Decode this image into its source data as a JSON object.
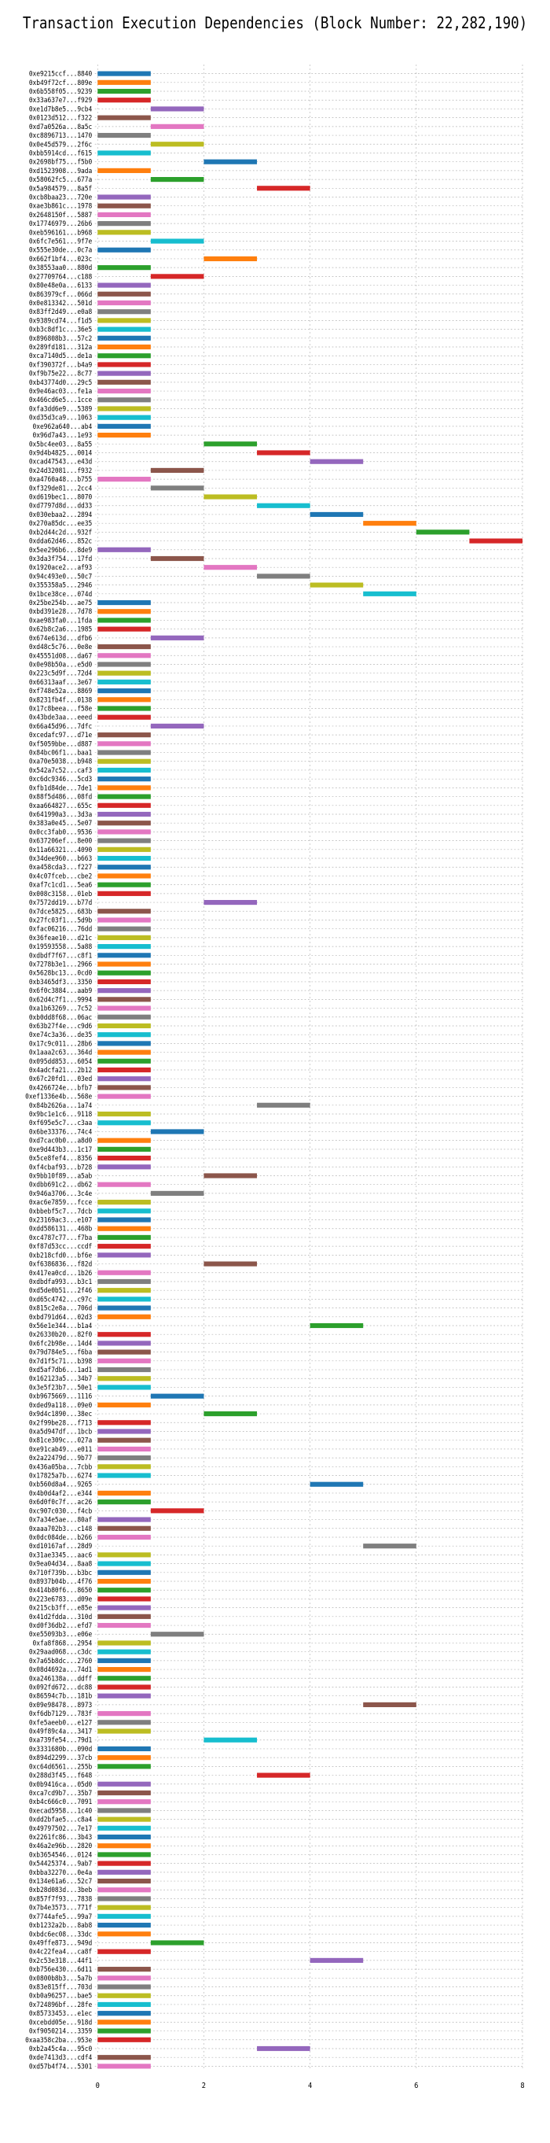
{
  "chart_data": {
    "type": "bar",
    "orientation": "horizontal",
    "title": "Transaction Execution Dependencies (Block Number: 22,282,190)",
    "xlabel": "",
    "ylabel": "",
    "xlim": [
      0,
      8
    ],
    "xticks": [
      0,
      2,
      4,
      6,
      8
    ],
    "grid": true,
    "palette": [
      "#1f77b4",
      "#ff7f0e",
      "#2ca02c",
      "#d62728",
      "#9467bd",
      "#8c564b",
      "#e377c2",
      "#7f7f7f",
      "#bcbd22",
      "#17becf"
    ],
    "transactions": [
      {
        "label": "0xe9215ccf...8840",
        "start": 0
      },
      {
        "label": "0xb49f72cf...809e",
        "start": 0
      },
      {
        "label": "0x6b558f05...9239",
        "start": 0
      },
      {
        "label": "0x33a637e7...f929",
        "start": 0
      },
      {
        "label": "0xe1d7b8e5...9cb4",
        "start": 1
      },
      {
        "label": "0x0123d512...f322",
        "start": 0
      },
      {
        "label": "0xd7a0526a...8a5c",
        "start": 1
      },
      {
        "label": "0xc8896713...1470",
        "start": 0
      },
      {
        "label": "0x0e45d579...2f6c",
        "start": 1
      },
      {
        "label": "0xbb5914cd...f615",
        "start": 0
      },
      {
        "label": "0x2698bf75...f5b0",
        "start": 2
      },
      {
        "label": "0xd1523908...9ada",
        "start": 0
      },
      {
        "label": "0x58062fc5...677a",
        "start": 1
      },
      {
        "label": "0x5a984579...8a5f",
        "start": 3
      },
      {
        "label": "0xcb8baa23...720e",
        "start": 0
      },
      {
        "label": "0xae3b861c...1978",
        "start": 0
      },
      {
        "label": "0x2648150f...5887",
        "start": 0
      },
      {
        "label": "0x17746979...26b6",
        "start": 0
      },
      {
        "label": "0xeb596161...b968",
        "start": 0
      },
      {
        "label": "0x6fc7e561...9f7e",
        "start": 1
      },
      {
        "label": "0x555e30de...0c7a",
        "start": 0
      },
      {
        "label": "0x662f1bf4...023c",
        "start": 2
      },
      {
        "label": "0x38553aa0...880d",
        "start": 0
      },
      {
        "label": "0x27709764...c188",
        "start": 1
      },
      {
        "label": "0x80e48e0a...6133",
        "start": 0
      },
      {
        "label": "0x863979cf...066d",
        "start": 0
      },
      {
        "label": "0x0e813342...501d",
        "start": 0
      },
      {
        "label": "0x83ff2d49...e0a8",
        "start": 0
      },
      {
        "label": "0x9389cd74...f1d5",
        "start": 0
      },
      {
        "label": "0xb3c8df1c...36e5",
        "start": 0
      },
      {
        "label": "0x896808b3...57c2",
        "start": 0
      },
      {
        "label": "0x289fd181...312a",
        "start": 0
      },
      {
        "label": "0xca7140d5...de1a",
        "start": 0
      },
      {
        "label": "0xf390372f...b4a9",
        "start": 0
      },
      {
        "label": "0xf9b75e22...8c77",
        "start": 0
      },
      {
        "label": "0xb43774d0...29c5",
        "start": 0
      },
      {
        "label": "0x9e46ac03...fe1a",
        "start": 0
      },
      {
        "label": "0x466cd6e5...1cce",
        "start": 0
      },
      {
        "label": "0xfa3dd6e9...5389",
        "start": 0
      },
      {
        "label": "0xd35d3ca9...1063",
        "start": 0
      },
      {
        "label": "0xe962a640...ab4",
        "start": 0
      },
      {
        "label": "0x96d7a43...1e93",
        "start": 0
      },
      {
        "label": "0x5bc4ee03...8a55",
        "start": 2
      },
      {
        "label": "0x9d4b4825...0014",
        "start": 3
      },
      {
        "label": "0xcad47543...e43d",
        "start": 4
      },
      {
        "label": "0x24d32081...f932",
        "start": 1
      },
      {
        "label": "0xa4760a48...b755",
        "start": 0
      },
      {
        "label": "0xf329de81...2cc4",
        "start": 1
      },
      {
        "label": "0xd619bec1...8070",
        "start": 2
      },
      {
        "label": "0xd7797d8d...dd33",
        "start": 3
      },
      {
        "label": "0x030ebaa2...2894",
        "start": 4
      },
      {
        "label": "0x270a85dc...ee35",
        "start": 5
      },
      {
        "label": "0xb2d44c2d...932f",
        "start": 6
      },
      {
        "label": "0xdda62d46...852c",
        "start": 7
      },
      {
        "label": "0x5ee296b6...8de9",
        "start": 0
      },
      {
        "label": "0x3da3f754...17fd",
        "start": 1
      },
      {
        "label": "0x1920ace2...af93",
        "start": 2
      },
      {
        "label": "0x94c493e0...50c7",
        "start": 3
      },
      {
        "label": "0x355358a5...2946",
        "start": 4
      },
      {
        "label": "0x1bce38ce...074d",
        "start": 5
      },
      {
        "label": "0x25be254b...ae75",
        "start": 0
      },
      {
        "label": "0xbd391e28...7d78",
        "start": 0
      },
      {
        "label": "0xae983fa0...1fda",
        "start": 0
      },
      {
        "label": "0x62b8c2a6...1985",
        "start": 0
      },
      {
        "label": "0x674e613d...dfb6",
        "start": 1
      },
      {
        "label": "0xd48c5c76...0e8e",
        "start": 0
      },
      {
        "label": "0x45551d08...da67",
        "start": 0
      },
      {
        "label": "0x0e98b50a...e5d0",
        "start": 0
      },
      {
        "label": "0x223c5d9f...72d4",
        "start": 0
      },
      {
        "label": "0x66313aaf...3e67",
        "start": 0
      },
      {
        "label": "0xf748e52a...8869",
        "start": 0
      },
      {
        "label": "0x8231fb4f...0138",
        "start": 0
      },
      {
        "label": "0x17c8beea...f58e",
        "start": 0
      },
      {
        "label": "0x43bde3aa...eeed",
        "start": 0
      },
      {
        "label": "0x66a45d96...7dfc",
        "start": 1
      },
      {
        "label": "0xcedafc97...d71e",
        "start": 0
      },
      {
        "label": "0xf5059bbe...d887",
        "start": 0
      },
      {
        "label": "0x84bc06f1...baa1",
        "start": 0
      },
      {
        "label": "0xa70e5038...b948",
        "start": 0
      },
      {
        "label": "0x542a7c52...caf3",
        "start": 0
      },
      {
        "label": "0xc6dc9346...5cd3",
        "start": 0
      },
      {
        "label": "0xfb1d84de...7de1",
        "start": 0
      },
      {
        "label": "0x88f5d486...08fd",
        "start": 0
      },
      {
        "label": "0xaa664827...655c",
        "start": 0
      },
      {
        "label": "0x641990a3...3d3a",
        "start": 0
      },
      {
        "label": "0x383a0e45...5e07",
        "start": 0
      },
      {
        "label": "0x0cc3fab0...9536",
        "start": 0
      },
      {
        "label": "0x637206ef...8e00",
        "start": 0
      },
      {
        "label": "0x11a66321...4090",
        "start": 0
      },
      {
        "label": "0x34dee960...b663",
        "start": 0
      },
      {
        "label": "0xa458cda3...f227",
        "start": 0
      },
      {
        "label": "0x4c07fceb...cbe2",
        "start": 0
      },
      {
        "label": "0xaf7c1cd1...5ea6",
        "start": 0
      },
      {
        "label": "0x008c3158...01eb",
        "start": 0
      },
      {
        "label": "0x7572dd19...b77d",
        "start": 2
      },
      {
        "label": "0x7dce5825...683b",
        "start": 0
      },
      {
        "label": "0x27fc03f1...5d9b",
        "start": 0
      },
      {
        "label": "0xfac06216...76dd",
        "start": 0
      },
      {
        "label": "0x36feae10...d21c",
        "start": 0
      },
      {
        "label": "0x19593558...5a88",
        "start": 0
      },
      {
        "label": "0xdbdf7f67...c8f1",
        "start": 0
      },
      {
        "label": "0x7278b3e1...2966",
        "start": 0
      },
      {
        "label": "0x5628bc13...0cd0",
        "start": 0
      },
      {
        "label": "0xb3465df3...3350",
        "start": 0
      },
      {
        "label": "0x6f0c3884...aab9",
        "start": 0
      },
      {
        "label": "0x62d4c7f1...9994",
        "start": 0
      },
      {
        "label": "0xa1b63269...7c52",
        "start": 0
      },
      {
        "label": "0xb0dd8f68...06ac",
        "start": 0
      },
      {
        "label": "0x63b27f4e...c9d6",
        "start": 0
      },
      {
        "label": "0xe74c3a36...de35",
        "start": 0
      },
      {
        "label": "0x17c9c011...28b6",
        "start": 0
      },
      {
        "label": "0x1aaa2c63...364d",
        "start": 0
      },
      {
        "label": "0x095dd853...6054",
        "start": 0
      },
      {
        "label": "0x4adcfa21...2b12",
        "start": 0
      },
      {
        "label": "0x67c20fd1...03ed",
        "start": 0
      },
      {
        "label": "0x4266724e...bfb7",
        "start": 0
      },
      {
        "label": "0xef1336e4b...568e",
        "start": 0
      },
      {
        "label": "0x84b2626a...1a74",
        "start": 3
      },
      {
        "label": "0x9bc1e1c6...9118",
        "start": 0
      },
      {
        "label": "0xf695e5c7...c3aa",
        "start": 0
      },
      {
        "label": "0x6be33376...74c4",
        "start": 1
      },
      {
        "label": "0xd7cac0b0...a8d0",
        "start": 0
      },
      {
        "label": "0xe9d443b3...1c17",
        "start": 0
      },
      {
        "label": "0x5ce8fef4...8356",
        "start": 0
      },
      {
        "label": "0xf4cbaf93...b728",
        "start": 0
      },
      {
        "label": "0x9bb10f89...a5ab",
        "start": 2
      },
      {
        "label": "0xdbb691c2...db62",
        "start": 0
      },
      {
        "label": "0x946a3706...3c4e",
        "start": 1
      },
      {
        "label": "0xac6e7859...fcce",
        "start": 0
      },
      {
        "label": "0xbbebf5c7...7dcb",
        "start": 0
      },
      {
        "label": "0x23169ac3...e107",
        "start": 0
      },
      {
        "label": "0xdd586131...468b",
        "start": 0
      },
      {
        "label": "0xc4787c77...f7ba",
        "start": 0
      },
      {
        "label": "0xf87d53cc...ccdf",
        "start": 0
      },
      {
        "label": "0xb218cfd0...bf6e",
        "start": 0
      },
      {
        "label": "0xf6386836...f82d",
        "start": 2
      },
      {
        "label": "0x417ea0cd...1b26",
        "start": 0
      },
      {
        "label": "0xdbdfa993...b3c1",
        "start": 0
      },
      {
        "label": "0xd5de0b51...2f46",
        "start": 0
      },
      {
        "label": "0xd65c4742...c97c",
        "start": 0
      },
      {
        "label": "0x815c2e8a...706d",
        "start": 0
      },
      {
        "label": "0xbd791d64...02d3",
        "start": 0
      },
      {
        "label": "0x56e1e344...b1a4",
        "start": 4
      },
      {
        "label": "0x26330b20...82f0",
        "start": 0
      },
      {
        "label": "0x6fc2b98e...14d4",
        "start": 0
      },
      {
        "label": "0x79d784e5...f6ba",
        "start": 0
      },
      {
        "label": "0x7d1f5c71...b398",
        "start": 0
      },
      {
        "label": "0xd5af7db6...1ad1",
        "start": 0
      },
      {
        "label": "0x162123a5...34b7",
        "start": 0
      },
      {
        "label": "0x3e5f23b7...50e1",
        "start": 0
      },
      {
        "label": "0xb9675669...1116",
        "start": 1
      },
      {
        "label": "0xded9a118...09e0",
        "start": 0
      },
      {
        "label": "0x9d4c1890...38ec",
        "start": 2
      },
      {
        "label": "0x2f99be28...f713",
        "start": 0
      },
      {
        "label": "0xa5d947df...1bcb",
        "start": 0
      },
      {
        "label": "0x81ce309c...027a",
        "start": 0
      },
      {
        "label": "0xe91cab49...e011",
        "start": 0
      },
      {
        "label": "0x2a22479d...9b77",
        "start": 0
      },
      {
        "label": "0x436a05ba...7cbb",
        "start": 0
      },
      {
        "label": "0x17825a7b...6274",
        "start": 0
      },
      {
        "label": "0xb560d8a4...9265",
        "start": 4
      },
      {
        "label": "0x4b0d4af2...e344",
        "start": 0
      },
      {
        "label": "0x6d0f0c7f...ac26",
        "start": 0
      },
      {
        "label": "0xc907c030...f4cb",
        "start": 1
      },
      {
        "label": "0x7a34e5ae...80af",
        "start": 0
      },
      {
        "label": "0xaaa702b3...c148",
        "start": 0
      },
      {
        "label": "0x0dc084de...b266",
        "start": 0
      },
      {
        "label": "0xd10167af...28d9",
        "start": 5
      },
      {
        "label": "0x31ae3345...aac6",
        "start": 0
      },
      {
        "label": "0x9ea04d34...8aa8",
        "start": 0
      },
      {
        "label": "0x710f739b...b3bc",
        "start": 0
      },
      {
        "label": "0x8937b04b...4f76",
        "start": 0
      },
      {
        "label": "0x414b80f6...8650",
        "start": 0
      },
      {
        "label": "0x223e6783...d09e",
        "start": 0
      },
      {
        "label": "0x215cb3ff...e85e",
        "start": 0
      },
      {
        "label": "0x41d2fdda...310d",
        "start": 0
      },
      {
        "label": "0xd0f36db2...efd7",
        "start": 0
      },
      {
        "label": "0xe55093b3...e06e",
        "start": 1
      },
      {
        "label": "0xfa8f868...2954",
        "start": 0
      },
      {
        "label": "0x29aad068...c3dc",
        "start": 0
      },
      {
        "label": "0x7a65b8dc...2760",
        "start": 0
      },
      {
        "label": "0x08d4692a...74d1",
        "start": 0
      },
      {
        "label": "0xa246138a...ddff",
        "start": 0
      },
      {
        "label": "0x092fd672...dc88",
        "start": 0
      },
      {
        "label": "0x86594c7b...181b",
        "start": 0
      },
      {
        "label": "0x09e98478...8973",
        "start": 5
      },
      {
        "label": "0xf6db7129...783f",
        "start": 0
      },
      {
        "label": "0xfe5aeeb0...e127",
        "start": 0
      },
      {
        "label": "0x49f89c4a...3417",
        "start": 0
      },
      {
        "label": "0xa739fe54...79d1",
        "start": 2
      },
      {
        "label": "0x3331680b...090d",
        "start": 0
      },
      {
        "label": "0x894d2299...37cb",
        "start": 0
      },
      {
        "label": "0xc64d6561...255b",
        "start": 0
      },
      {
        "label": "0x288d3f45...f648",
        "start": 3
      },
      {
        "label": "0x0b9416ca...05d0",
        "start": 0
      },
      {
        "label": "0xca7cd9b7...35b7",
        "start": 0
      },
      {
        "label": "0xb4c666c0...7091",
        "start": 0
      },
      {
        "label": "0xecad5958...1c40",
        "start": 0
      },
      {
        "label": "0xdd2bfae5...c8a4",
        "start": 0
      },
      {
        "label": "0x49797502...7e17",
        "start": 0
      },
      {
        "label": "0x2261fc86...3b43",
        "start": 0
      },
      {
        "label": "0x46a2e96b...2820",
        "start": 0
      },
      {
        "label": "0xb3654546...0124",
        "start": 0
      },
      {
        "label": "0x54425374...9ab7",
        "start": 0
      },
      {
        "label": "0xbba32270...0e4a",
        "start": 0
      },
      {
        "label": "0x134e61a6...52c7",
        "start": 0
      },
      {
        "label": "0xb28d083d...3beb",
        "start": 0
      },
      {
        "label": "0x857f7f93...7838",
        "start": 0
      },
      {
        "label": "0x7b4e3573...771f",
        "start": 0
      },
      {
        "label": "0x7744afe5...99a7",
        "start": 0
      },
      {
        "label": "0xb1232a2b...8ab8",
        "start": 0
      },
      {
        "label": "0xbdc6ec08...33dc",
        "start": 0
      },
      {
        "label": "0x49ffe873...949d",
        "start": 1
      },
      {
        "label": "0x4c22fea4...ca8f",
        "start": 0
      },
      {
        "label": "0x2c53e318...44f1",
        "start": 4
      },
      {
        "label": "0xb756e430...6d11",
        "start": 0
      },
      {
        "label": "0x0800b8b3...5a7b",
        "start": 0
      },
      {
        "label": "0x83e815ff...703d",
        "start": 0
      },
      {
        "label": "0xb0a96257...bae5",
        "start": 0
      },
      {
        "label": "0x724896bf...28fe",
        "start": 0
      },
      {
        "label": "0x85733453...e1ec",
        "start": 0
      },
      {
        "label": "0xcebdd05e...918d",
        "start": 0
      },
      {
        "label": "0xf9050214...3359",
        "start": 0
      },
      {
        "label": "0xaa358c2ba...953e",
        "start": 0
      },
      {
        "label": "0xb2a45c4a...95c0",
        "start": 3
      },
      {
        "label": "0xde7413d3...cdf4",
        "start": 0
      },
      {
        "label": "0xd57b4f74...5301",
        "start": 0
      }
    ]
  }
}
